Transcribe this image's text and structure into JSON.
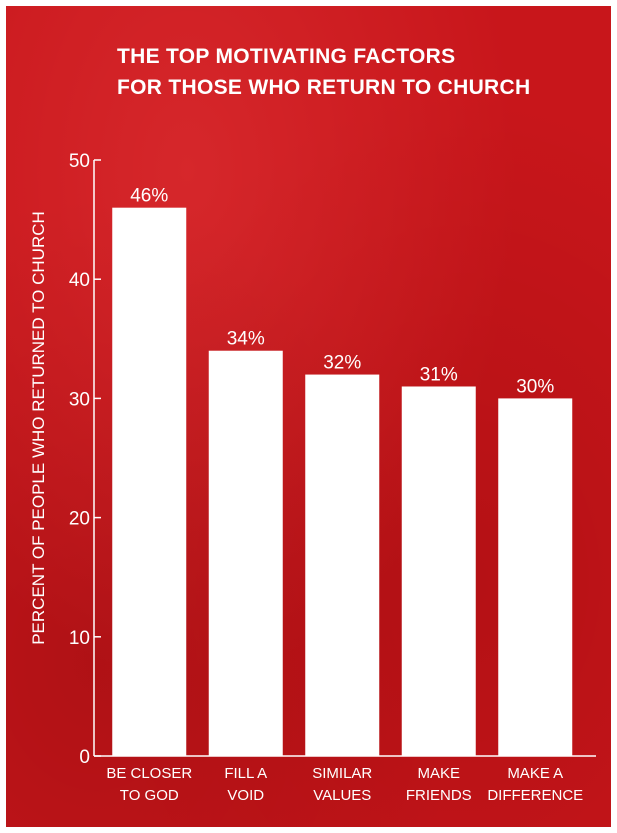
{
  "colors": {
    "background": "#c8161b",
    "bars": "#ffffff",
    "text": "#ffffff"
  },
  "chart_data": {
    "type": "bar",
    "title_lines": [
      "THE TOP MOTIVATING FACTORS",
      "FOR THOSE WHO RETURN TO CHURCH"
    ],
    "ylabel": "PERCENT OF PEOPLE WHO RETURNED TO CHURCH",
    "xlabel": "",
    "ylim": [
      0,
      50
    ],
    "yticks": [
      "0",
      "10",
      "20",
      "30",
      "40",
      "50"
    ],
    "grid": false,
    "categories": [
      [
        "BE CLOSER",
        "TO GOD"
      ],
      [
        "FILL A",
        "VOID"
      ],
      [
        "SIMILAR",
        "VALUES"
      ],
      [
        "MAKE",
        "FRIENDS"
      ],
      [
        "MAKE A",
        "DIFFERENCE"
      ]
    ],
    "values": [
      46,
      34,
      32,
      31,
      30
    ],
    "data_labels": [
      "46%",
      "34%",
      "32%",
      "31%",
      "30%"
    ]
  }
}
